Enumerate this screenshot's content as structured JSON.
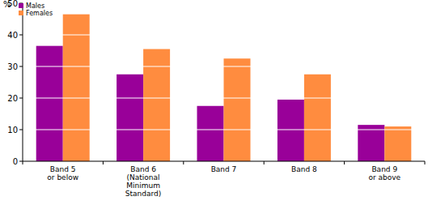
{
  "chart_data": {
    "type": "bar",
    "y_label": "%",
    "categories": [
      "Band 5\nor below",
      "Band 6\n(National\nMinimum\nStandard)",
      "Band 7",
      "Band 8",
      "Band 9\nor above"
    ],
    "series": [
      {
        "name": "Males",
        "color": "#990099",
        "values": [
          36.5,
          27.5,
          17.5,
          19.5,
          11.5
        ]
      },
      {
        "name": "Females",
        "color": "#ff8c3f",
        "values": [
          46.5,
          35.5,
          32.5,
          27.5,
          11
        ]
      }
    ],
    "ylim": [
      0,
      50
    ],
    "yticks": [
      0,
      10,
      20,
      30,
      40,
      50
    ],
    "grid": true,
    "legend": "top-left"
  }
}
